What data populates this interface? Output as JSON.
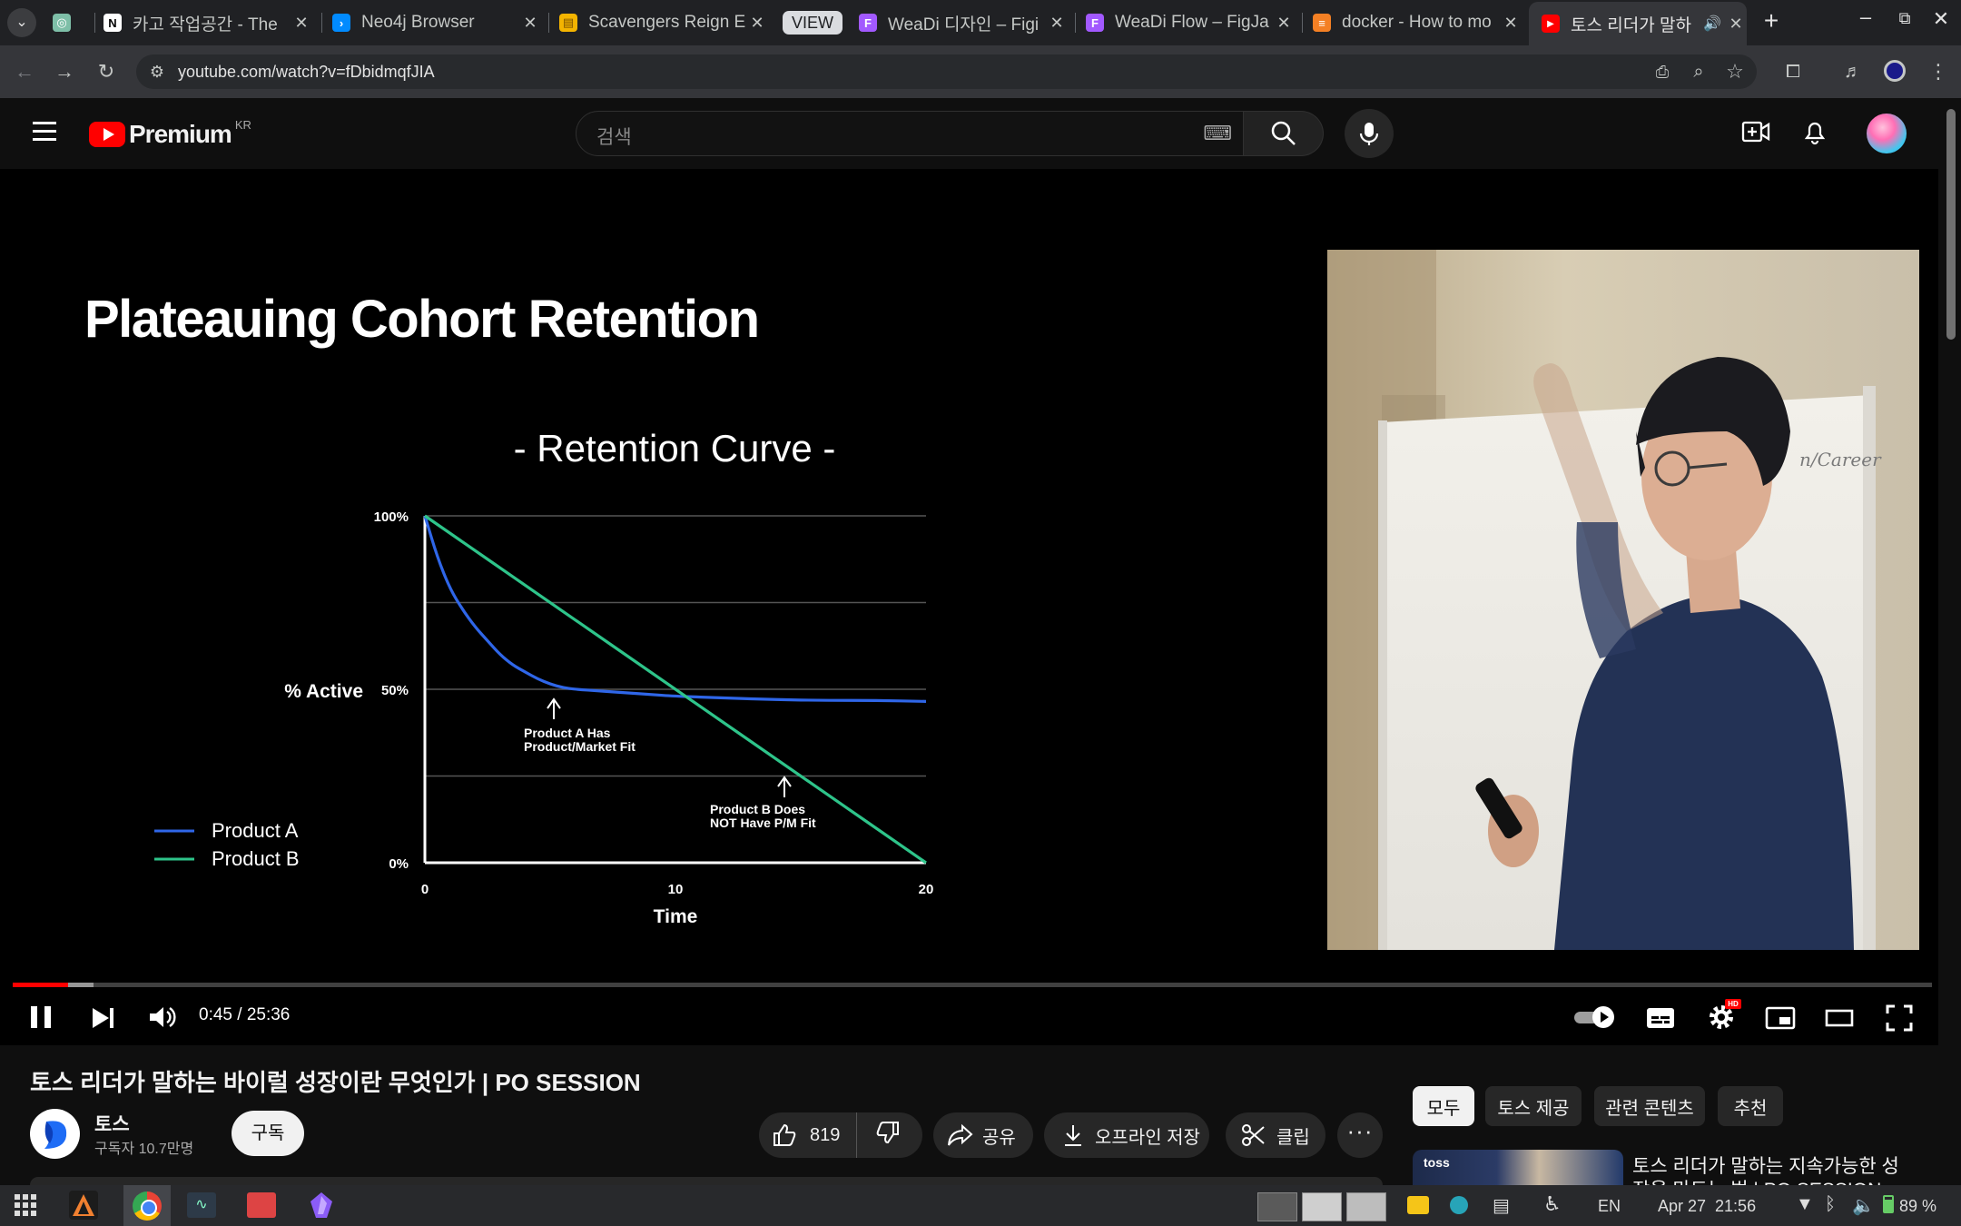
{
  "browser": {
    "tabs": [
      {
        "title": "카고 작업공간 - The",
        "icon": "notion-icon",
        "color": "#ffffff"
      },
      {
        "title": "Neo4j Browser",
        "icon": "neo4j-icon",
        "color": "#018bff"
      },
      {
        "title": "Scavengers Reign E",
        "icon": "folder-icon",
        "color": "#f4b400"
      },
      {
        "title": "WeaDi 디자인 – Figi",
        "icon": "figma-icon",
        "color": "#a259ff"
      },
      {
        "title": "WeaDi Flow – FigJa",
        "icon": "figma-icon",
        "color": "#a259ff"
      },
      {
        "title": "docker - How to mo",
        "icon": "stackoverflow-icon",
        "color": "#f48024"
      },
      {
        "title": "토스 리더가 말하",
        "icon": "youtube-icon",
        "color": "#ff0000"
      }
    ],
    "group_label": "VIEW",
    "url": "youtube.com/watch?v=fDbidmqfJIA"
  },
  "youtube": {
    "logo_text": "Premium",
    "region": "KR",
    "search_placeholder": "검색"
  },
  "slide": {
    "title": "Plateauing Cohort Retention",
    "chart_title": "- Retention Curve -",
    "legend": [
      "Product A",
      "Product B"
    ],
    "annotation_a": [
      "Product A Has",
      "Product/Market Fit"
    ],
    "annotation_b": [
      "Product B Does",
      "NOT Have P/M Fit"
    ],
    "y_title": "% Active",
    "x_title": "Time",
    "y_ticks": [
      "100%",
      "50%",
      "0%"
    ],
    "x_ticks": [
      "0",
      "10",
      "20"
    ]
  },
  "chart_data": {
    "type": "line",
    "title": "- Retention Curve -",
    "xlabel": "Time",
    "ylabel": "% Active",
    "xlim": [
      0,
      20
    ],
    "ylim": [
      0,
      100
    ],
    "y_ticks": [
      "0%",
      "50%",
      "100%"
    ],
    "x_ticks": [
      "0",
      "10",
      "20"
    ],
    "grid": true,
    "legend": "bottom-left",
    "series": [
      {
        "name": "Product A",
        "color": "#2f66e8",
        "x": [
          0,
          0.5,
          1,
          1.5,
          2,
          2.5,
          3,
          3.5,
          4,
          4.5,
          5,
          5.5,
          6,
          7,
          8,
          9,
          10,
          12,
          14,
          16,
          18,
          20
        ],
        "y": [
          100,
          88,
          79,
          73,
          68,
          64,
          60,
          57,
          55,
          53,
          51.5,
          50.5,
          50,
          49.5,
          49,
          48.5,
          48,
          47.5,
          47,
          46.8,
          46.8,
          46.5
        ]
      },
      {
        "name": "Product B",
        "color": "#2ec48a",
        "x": [
          0,
          5,
          10,
          15,
          20
        ],
        "y": [
          100,
          75,
          50,
          25,
          0
        ]
      }
    ]
  },
  "player": {
    "time": "0:45 / 25:36",
    "progress": 0.029,
    "buffered": 0.042
  },
  "video": {
    "title": "토스 리더가 말하는 바이럴 성장이란 무엇인가 | PO SESSION",
    "channel": "토스",
    "subscribers": "구독자 10.7만명",
    "subscribe_label": "구독",
    "likes": "819",
    "share_label": "공유",
    "download_label": "오프라인 저장",
    "clip_label": "클립"
  },
  "chips": [
    "모두",
    "토스 제공",
    "관련 콘텐츠",
    "추천"
  ],
  "recommend": {
    "title_line1": "토스 리더가 말하는 지속가능한 성",
    "title_line2": "장을 만드는 법 | PO SESSION",
    "thumb_brand": "toss"
  },
  "taskbar": {
    "lang": "EN",
    "datetime": "Apr 27  21:56",
    "battery": "89 %"
  }
}
